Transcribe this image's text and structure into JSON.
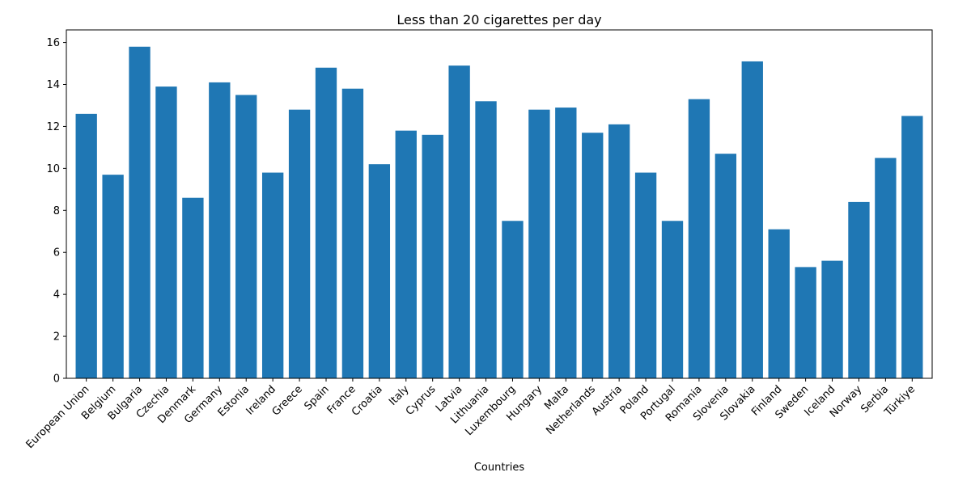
{
  "chart_data": {
    "type": "bar",
    "title": "Less than 20 cigarettes per day",
    "xlabel": "Countries",
    "ylabel": "",
    "ylim": [
      0,
      16.6
    ],
    "yticks": [
      0,
      2,
      4,
      6,
      8,
      10,
      12,
      14,
      16
    ],
    "grid": false,
    "bar_color": "#1f77b4",
    "categories": [
      "European Union",
      "Belgium",
      "Bulgaria",
      "Czechia",
      "Denmark",
      "Germany",
      "Estonia",
      "Ireland",
      "Greece",
      "Spain",
      "France",
      "Croatia",
      "Italy",
      "Cyprus",
      "Latvia",
      "Lithuania",
      "Luxembourg",
      "Hungary",
      "Malta",
      "Netherlands",
      "Austria",
      "Poland",
      "Portugal",
      "Romania",
      "Slovenia",
      "Slovakia",
      "Finland",
      "Sweden",
      "Iceland",
      "Norway",
      "Serbia",
      "Türkiye"
    ],
    "values": [
      12.6,
      9.7,
      15.8,
      13.9,
      8.6,
      14.1,
      13.5,
      9.8,
      12.8,
      14.8,
      13.8,
      10.2,
      11.8,
      11.6,
      14.9,
      13.2,
      7.5,
      12.8,
      12.9,
      11.7,
      12.1,
      9.8,
      7.5,
      13.3,
      10.7,
      15.1,
      7.1,
      5.3,
      5.6,
      8.4,
      10.5,
      12.5
    ]
  }
}
